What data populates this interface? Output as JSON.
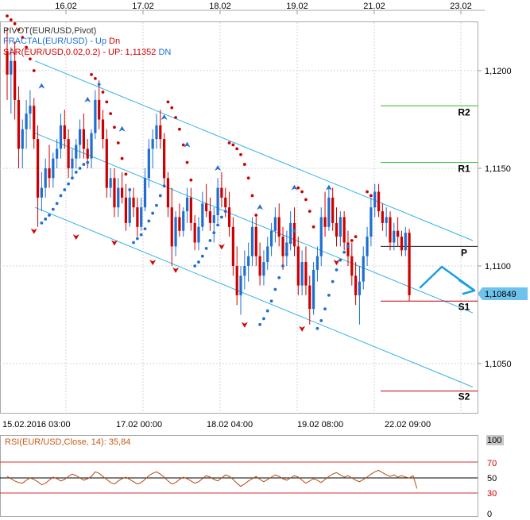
{
  "chart_data": [
    {
      "type": "candlestick",
      "symbol": "EUR/USD",
      "indicators": {
        "line1": "PIVOT(EUR/USD,Pivot)",
        "line2_name": "FRACTAL(EUR/USD)",
        "line2_up": "Up",
        "line2_dn": "Dn",
        "line3_name": "SAR(EUR/USD,0.02,0.2)",
        "line3_up": "UP: 1,11352",
        "line3_dn": "DN"
      },
      "top_dates": [
        "16.02",
        "17.02",
        "18.02",
        "19.02",
        "21.02",
        "23.02"
      ],
      "bottom_dates": [
        "15.02.2016 03:00",
        "17.02 00:00",
        "18.02 04:00",
        "19.02 08:00",
        "22.02 09:00"
      ],
      "y_ticks": [
        "1,1200",
        "1,1150",
        "1,1100",
        "1,1050"
      ],
      "y_tick_values": [
        1.12,
        1.115,
        1.11,
        1.105
      ],
      "ylim": [
        1.1028,
        1.1225
      ],
      "current_price": "1,10849",
      "current_price_value": 1.10849,
      "colors": {
        "bull": "#1e6fd0",
        "bear": "#cc0000",
        "channel": "#33b5e5",
        "sar": "#cc0000",
        "sar_up": "#1e6fd0",
        "r_levels": "#2db82d",
        "s_levels": "#c00000",
        "arrow": "#1a9ee0",
        "price_label_bg": "#6ec3ee"
      },
      "pivot_levels": [
        {
          "name": "R2",
          "value": 1.1182
        },
        {
          "name": "R1",
          "value": 1.1153
        },
        {
          "name": "P",
          "value": 1.111
        },
        {
          "name": "S1",
          "value": 1.1082
        },
        {
          "name": "S2",
          "value": 1.1036
        }
      ],
      "candles": [
        [
          1.121,
          1.1222,
          1.1185,
          1.1198
        ],
        [
          1.1198,
          1.1212,
          1.1178,
          1.1205
        ],
        [
          1.1205,
          1.1215,
          1.1175,
          1.1185
        ],
        [
          1.1185,
          1.1192,
          1.115,
          1.116
        ],
        [
          1.116,
          1.1175,
          1.115,
          1.117
        ],
        [
          1.117,
          1.1185,
          1.116,
          1.1178
        ],
        [
          1.1178,
          1.119,
          1.117,
          1.1182
        ],
        [
          1.1182,
          1.1186,
          1.116,
          1.1165
        ],
        [
          1.1165,
          1.1172,
          1.112,
          1.1135
        ],
        [
          1.1135,
          1.1148,
          1.1128,
          1.114
        ],
        [
          1.114,
          1.1155,
          1.1135,
          1.115
        ],
        [
          1.115,
          1.1162,
          1.114,
          1.1145
        ],
        [
          1.1145,
          1.1158,
          1.114,
          1.1155
        ],
        [
          1.1155,
          1.1165,
          1.115,
          1.116
        ],
        [
          1.116,
          1.1178,
          1.1155,
          1.1172
        ],
        [
          1.1172,
          1.118,
          1.116,
          1.1165
        ],
        [
          1.1165,
          1.117,
          1.1145,
          1.115
        ],
        [
          1.115,
          1.116,
          1.1145,
          1.1155
        ],
        [
          1.1155,
          1.1165,
          1.115,
          1.1162
        ],
        [
          1.1162,
          1.1175,
          1.1155,
          1.117
        ],
        [
          1.117,
          1.1178,
          1.1155,
          1.116
        ],
        [
          1.116,
          1.1165,
          1.115,
          1.1155
        ],
        [
          1.1155,
          1.117,
          1.115,
          1.1168
        ],
        [
          1.1168,
          1.119,
          1.1165,
          1.1185
        ],
        [
          1.1185,
          1.1195,
          1.117,
          1.1175
        ],
        [
          1.1175,
          1.118,
          1.116,
          1.1165
        ],
        [
          1.1165,
          1.117,
          1.1135,
          1.114
        ],
        [
          1.114,
          1.115,
          1.1135,
          1.1145
        ],
        [
          1.1145,
          1.115,
          1.1125,
          1.113
        ],
        [
          1.113,
          1.1145,
          1.1125,
          1.114
        ],
        [
          1.114,
          1.1148,
          1.1132,
          1.1135
        ],
        [
          1.1135,
          1.1142,
          1.1118,
          1.1122
        ],
        [
          1.1122,
          1.114,
          1.112,
          1.1135
        ],
        [
          1.1135,
          1.114,
          1.1125,
          1.113
        ],
        [
          1.113,
          1.1135,
          1.1115,
          1.112
        ],
        [
          1.112,
          1.1135,
          1.1118,
          1.113
        ],
        [
          1.113,
          1.115,
          1.1128,
          1.1145
        ],
        [
          1.1145,
          1.1165,
          1.114,
          1.116
        ],
        [
          1.116,
          1.117,
          1.115,
          1.1165
        ],
        [
          1.1165,
          1.1178,
          1.116,
          1.1172
        ],
        [
          1.1172,
          1.118,
          1.116,
          1.1165
        ],
        [
          1.1165,
          1.1168,
          1.114,
          1.1145
        ],
        [
          1.1145,
          1.1148,
          1.1125,
          1.113
        ],
        [
          1.113,
          1.114,
          1.11,
          1.111
        ],
        [
          1.111,
          1.1128,
          1.1105,
          1.1125
        ],
        [
          1.1125,
          1.1132,
          1.1115,
          1.1118
        ],
        [
          1.1118,
          1.113,
          1.1115,
          1.1128
        ],
        [
          1.1128,
          1.114,
          1.1122,
          1.1135
        ],
        [
          1.1135,
          1.114,
          1.1118,
          1.1122
        ],
        [
          1.1122,
          1.1126,
          1.1108,
          1.1112
        ],
        [
          1.1112,
          1.1125,
          1.1108,
          1.112
        ],
        [
          1.112,
          1.1138,
          1.1118,
          1.1132
        ],
        [
          1.1132,
          1.1142,
          1.1125,
          1.1128
        ],
        [
          1.1128,
          1.1135,
          1.1118,
          1.1122
        ],
        [
          1.1122,
          1.113,
          1.1112,
          1.1126
        ],
        [
          1.1126,
          1.1145,
          1.1122,
          1.114
        ],
        [
          1.114,
          1.1148,
          1.113,
          1.1135
        ],
        [
          1.1135,
          1.114,
          1.1125,
          1.113
        ],
        [
          1.113,
          1.1138,
          1.1115,
          1.112
        ],
        [
          1.112,
          1.1125,
          1.1095,
          1.11
        ],
        [
          1.11,
          1.111,
          1.108,
          1.1085
        ],
        [
          1.1085,
          1.11,
          1.1075,
          1.1095
        ],
        [
          1.1095,
          1.1108,
          1.1088,
          1.11
        ],
        [
          1.11,
          1.1112,
          1.1092,
          1.1105
        ],
        [
          1.1105,
          1.1125,
          1.11,
          1.112
        ],
        [
          1.112,
          1.1125,
          1.11,
          1.1105
        ],
        [
          1.1105,
          1.1112,
          1.109,
          1.1095
        ],
        [
          1.1095,
          1.1108,
          1.109,
          1.1102
        ],
        [
          1.1102,
          1.1115,
          1.1098,
          1.111
        ],
        [
          1.111,
          1.1122,
          1.1105,
          1.1118
        ],
        [
          1.1118,
          1.113,
          1.1112,
          1.1125
        ],
        [
          1.1125,
          1.1132,
          1.111,
          1.1115
        ],
        [
          1.1115,
          1.112,
          1.1098,
          1.1105
        ],
        [
          1.1105,
          1.1118,
          1.11,
          1.1112
        ],
        [
          1.1112,
          1.1128,
          1.1108,
          1.1122
        ],
        [
          1.1122,
          1.113,
          1.1105,
          1.111
        ],
        [
          1.111,
          1.1115,
          1.1085,
          1.109
        ],
        [
          1.109,
          1.1108,
          1.1085,
          1.1102
        ],
        [
          1.1102,
          1.111,
          1.1085,
          1.109
        ],
        [
          1.109,
          1.1095,
          1.107,
          1.1078
        ],
        [
          1.1078,
          1.1102,
          1.1075,
          1.1098
        ],
        [
          1.1098,
          1.111,
          1.1092,
          1.1105
        ],
        [
          1.1105,
          1.113,
          1.11,
          1.1125
        ],
        [
          1.1125,
          1.1138,
          1.1115,
          1.112
        ],
        [
          1.112,
          1.114,
          1.1118,
          1.1135
        ],
        [
          1.1135,
          1.114,
          1.1118,
          1.1122
        ],
        [
          1.1122,
          1.113,
          1.111,
          1.1115
        ],
        [
          1.1115,
          1.1128,
          1.111,
          1.1125
        ],
        [
          1.1125,
          1.1128,
          1.1108,
          1.1112
        ],
        [
          1.1112,
          1.1118,
          1.11,
          1.1105
        ],
        [
          1.1105,
          1.1112,
          1.109,
          1.1095
        ],
        [
          1.1095,
          1.1102,
          1.108,
          1.1085
        ],
        [
          1.1085,
          1.11,
          1.107,
          1.1092
        ],
        [
          1.1092,
          1.111,
          1.1088,
          1.1105
        ],
        [
          1.1105,
          1.112,
          1.11,
          1.1115
        ],
        [
          1.1115,
          1.1135,
          1.111,
          1.113
        ],
        [
          1.113,
          1.1142,
          1.1125,
          1.1138
        ],
        [
          1.1138,
          1.1142,
          1.1125,
          1.1128
        ],
        [
          1.1128,
          1.1132,
          1.1118,
          1.1122
        ],
        [
          1.1122,
          1.113,
          1.1115,
          1.1125
        ],
        [
          1.1125,
          1.1128,
          1.1108,
          1.1112
        ],
        [
          1.1112,
          1.1122,
          1.1108,
          1.1118
        ],
        [
          1.1118,
          1.1125,
          1.111,
          1.1115
        ],
        [
          1.1115,
          1.1118,
          1.1105,
          1.1108
        ],
        [
          1.1108,
          1.112,
          1.1105,
          1.1117
        ],
        [
          1.1117,
          1.1119,
          1.1082,
          1.1085
        ]
      ],
      "sar_points": [
        [
          0,
          1.1228
        ],
        [
          1,
          1.1226
        ],
        [
          2,
          1.1224
        ],
        [
          3,
          1.1221
        ],
        [
          4,
          1.1217
        ],
        [
          5,
          1.1212
        ],
        [
          6,
          1.1206
        ],
        [
          7,
          1.12
        ],
        [
          9,
          1.1122
        ],
        [
          10,
          1.1124
        ],
        [
          11,
          1.1126
        ],
        [
          12,
          1.1129
        ],
        [
          13,
          1.1132
        ],
        [
          14,
          1.1136
        ],
        [
          15,
          1.1139
        ],
        [
          16,
          1.1142
        ],
        [
          17,
          1.1145
        ],
        [
          18,
          1.1148
        ],
        [
          19,
          1.115
        ],
        [
          20,
          1.1152
        ],
        [
          21,
          1.1153
        ],
        [
          22,
          1.1198
        ],
        [
          23,
          1.1196
        ],
        [
          24,
          1.1193
        ],
        [
          25,
          1.1189
        ],
        [
          26,
          1.1184
        ],
        [
          27,
          1.1178
        ],
        [
          28,
          1.1171
        ],
        [
          29,
          1.1163
        ],
        [
          30,
          1.1155
        ],
        [
          31,
          1.1147
        ],
        [
          32,
          1.1139
        ],
        [
          33,
          1.1112
        ],
        [
          34,
          1.1114
        ],
        [
          35,
          1.1116
        ],
        [
          36,
          1.1119
        ],
        [
          37,
          1.1123
        ],
        [
          38,
          1.1127
        ],
        [
          39,
          1.1131
        ],
        [
          40,
          1.1136
        ],
        [
          41,
          1.1141
        ],
        [
          42,
          1.1184
        ],
        [
          43,
          1.1181
        ],
        [
          44,
          1.1176
        ],
        [
          45,
          1.117
        ],
        [
          46,
          1.1162
        ],
        [
          47,
          1.1153
        ],
        [
          48,
          1.1144
        ],
        [
          49,
          1.11
        ],
        [
          50,
          1.1102
        ],
        [
          51,
          1.1105
        ],
        [
          52,
          1.1109
        ],
        [
          53,
          1.1113
        ],
        [
          54,
          1.1117
        ],
        [
          55,
          1.1121
        ],
        [
          56,
          1.1125
        ],
        [
          57,
          1.1128
        ],
        [
          58,
          1.1163
        ],
        [
          59,
          1.1162
        ],
        [
          60,
          1.116
        ],
        [
          61,
          1.1157
        ],
        [
          62,
          1.1152
        ],
        [
          63,
          1.1145
        ],
        [
          64,
          1.1136
        ],
        [
          65,
          1.1126
        ],
        [
          66,
          1.107
        ],
        [
          67,
          1.1073
        ],
        [
          68,
          1.1077
        ],
        [
          69,
          1.1082
        ],
        [
          70,
          1.1088
        ],
        [
          71,
          1.1094
        ],
        [
          72,
          1.11
        ],
        [
          73,
          1.1106
        ],
        [
          74,
          1.1112
        ],
        [
          75,
          1.1118
        ],
        [
          76,
          1.114
        ],
        [
          77,
          1.1138
        ],
        [
          78,
          1.1134
        ],
        [
          79,
          1.1128
        ],
        [
          80,
          1.112
        ],
        [
          81,
          1.1068
        ],
        [
          82,
          1.1072
        ],
        [
          83,
          1.1078
        ],
        [
          84,
          1.1085
        ],
        [
          85,
          1.1092
        ],
        [
          86,
          1.1098
        ],
        [
          87,
          1.1103
        ],
        [
          88,
          1.1107
        ],
        [
          89,
          1.111
        ],
        [
          90,
          1.1113
        ],
        [
          91,
          1.1115
        ],
        [
          94,
          1.1138
        ],
        [
          95,
          1.1136
        ]
      ],
      "fractal_up": [
        [
          9,
          1.1192
        ],
        [
          21,
          1.1185
        ],
        [
          30,
          1.117
        ],
        [
          41,
          1.1176
        ],
        [
          47,
          1.1162
        ],
        [
          55,
          1.115
        ],
        [
          66,
          1.113
        ],
        [
          75,
          1.114
        ],
        [
          84,
          1.114
        ]
      ],
      "fractal_dn": [
        [
          7,
          1.1118
        ],
        [
          18,
          1.1115
        ],
        [
          28,
          1.1112
        ],
        [
          38,
          1.1102
        ],
        [
          44,
          1.1098
        ],
        [
          56,
          1.111
        ],
        [
          62,
          1.107
        ],
        [
          77,
          1.1068
        ],
        [
          86,
          1.1102
        ]
      ],
      "channel": {
        "x1": 0,
        "x2": 107,
        "upper": [
          1.1205,
          1.1113
        ],
        "middle": [
          1.1168,
          1.1076
        ],
        "lower": [
          1.113,
          1.1038
        ]
      },
      "forecast_arrow": [
        [
          1.109,
          0
        ],
        [
          1.1103,
          0
        ],
        [
          1.109,
          0
        ]
      ]
    },
    {
      "type": "line",
      "title": "RSI(EUR/USD,Close, 14): 35,84",
      "y_ticks": [
        "100",
        "70",
        "50",
        "30",
        "0"
      ],
      "ylim": [
        0,
        100
      ],
      "levels": [
        70,
        50,
        30
      ],
      "values": [
        52,
        49,
        46,
        44,
        43,
        47,
        50,
        48,
        45,
        41,
        43,
        47,
        51,
        49,
        46,
        48,
        52,
        55,
        53,
        50,
        47,
        49,
        52,
        58,
        56,
        52,
        48,
        44,
        42,
        46,
        49,
        51,
        48,
        45,
        42,
        44,
        48,
        53,
        56,
        58,
        55,
        51,
        46,
        42,
        44,
        48,
        51,
        49,
        46,
        43,
        45,
        49,
        53,
        51,
        48,
        46,
        50,
        54,
        52,
        48,
        43,
        39,
        42,
        46,
        49,
        52,
        48,
        45,
        48,
        51,
        54,
        52,
        49,
        47,
        50,
        53,
        51,
        47,
        43,
        46,
        49,
        47,
        44,
        48,
        52,
        55,
        57,
        54,
        51,
        53,
        50,
        47,
        45,
        48,
        51,
        55,
        58,
        60,
        57,
        54,
        52,
        54,
        51,
        53,
        51,
        50,
        53,
        36
      ]
    }
  ]
}
